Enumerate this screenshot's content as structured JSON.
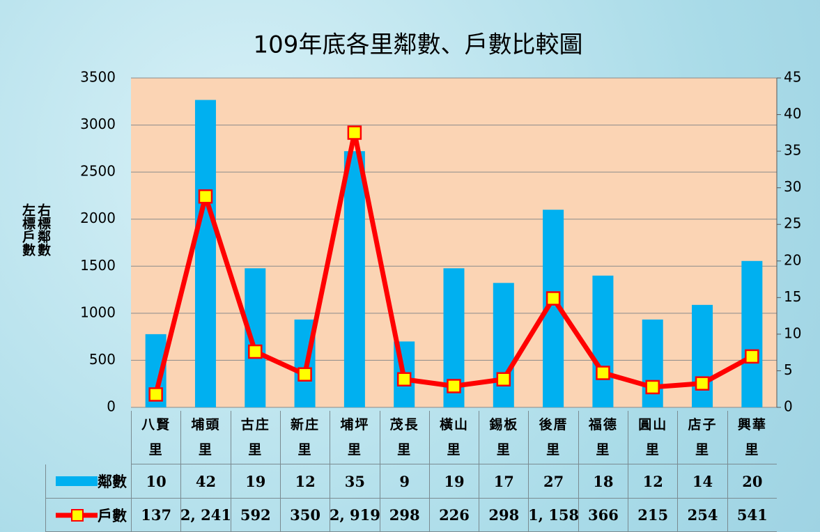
{
  "chart_data": {
    "type": "bar",
    "title": "109年底各里鄰數、戶數比較圖",
    "y_label": "左標戶數",
    "y2_label": "右標鄰數",
    "categories": [
      "八賢里",
      "埔頭里",
      "古庄里",
      "新庄里",
      "埔坪里",
      "茂長里",
      "橫山里",
      "錫板里",
      "後厝里",
      "福德里",
      "圓山里",
      "店子里",
      "興華里"
    ],
    "series": [
      {
        "name": "鄰數",
        "type": "bar",
        "axis": "y2",
        "color": "#00b0f0",
        "values": [
          10,
          42,
          19,
          12,
          35,
          9,
          19,
          17,
          27,
          18,
          12,
          14,
          20
        ]
      },
      {
        "name": "戶數",
        "type": "line",
        "axis": "y",
        "color": "#ff0000",
        "marker_color": "#ffff00",
        "values": [
          137,
          2241,
          592,
          350,
          2919,
          298,
          226,
          298,
          1158,
          366,
          215,
          254,
          541
        ],
        "value_labels": [
          "137",
          "2, 241",
          "592",
          "350",
          "2, 919",
          "298",
          "226",
          "298",
          "1, 158",
          "366",
          "215",
          "254",
          "541"
        ]
      }
    ],
    "ylim": [
      0,
      3500
    ],
    "yticks": [
      0,
      500,
      1000,
      1500,
      2000,
      2500,
      3000,
      3500
    ],
    "y2lim": [
      0,
      45
    ],
    "y2ticks": [
      0,
      5,
      10,
      15,
      20,
      25,
      30,
      35,
      40,
      45
    ],
    "grid": true,
    "plot_background": "#fbd4b4"
  }
}
